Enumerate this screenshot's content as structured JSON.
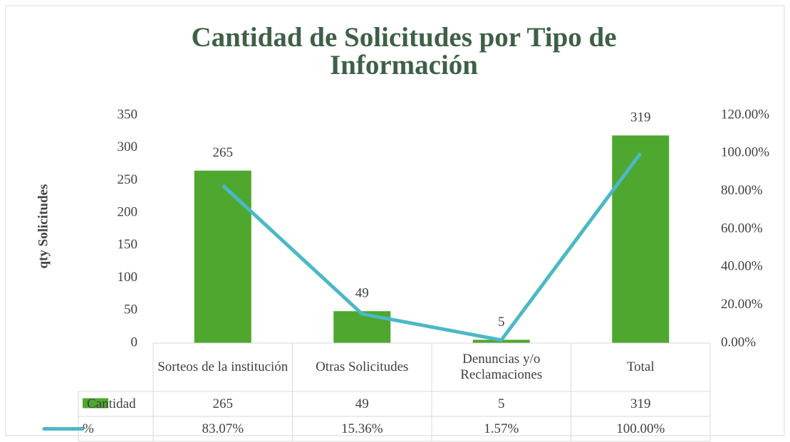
{
  "chart_data": {
    "type": "bar",
    "title": "Cantidad de Solicitudes por Tipo de Información",
    "ylabel": "qty Solicitudes",
    "categories": [
      "Sorteos de la institución",
      "Otras Solicitudes",
      "Denuncias y/o Reclamaciones",
      "Total"
    ],
    "series": [
      {
        "name": "Cantidad",
        "color": "#4ea72e",
        "type": "bar",
        "values": [
          265,
          49,
          5,
          319
        ]
      },
      {
        "name": "%",
        "color": "#4bb8c8",
        "type": "line",
        "axis": "y2",
        "values": [
          83.07,
          15.36,
          1.57,
          100
        ],
        "value_labels": [
          "83.07%",
          "15.36%",
          "1.57%",
          "100.00%"
        ]
      }
    ],
    "ylim": [
      0,
      350
    ],
    "yticks": [
      0,
      50,
      100,
      150,
      200,
      250,
      300,
      350
    ],
    "y2lim": [
      0,
      120
    ],
    "y2ticks": [
      {
        "value": 0,
        "label": "0.00%"
      },
      {
        "value": 20,
        "label": "20.00%"
      },
      {
        "value": 40,
        "label": "40.00%"
      },
      {
        "value": 60,
        "label": "60.00%"
      },
      {
        "value": 80,
        "label": "80.00%"
      },
      {
        "value": 100,
        "label": "100.00%"
      },
      {
        "value": 120,
        "label": "120.00%"
      }
    ],
    "data_table": true
  }
}
